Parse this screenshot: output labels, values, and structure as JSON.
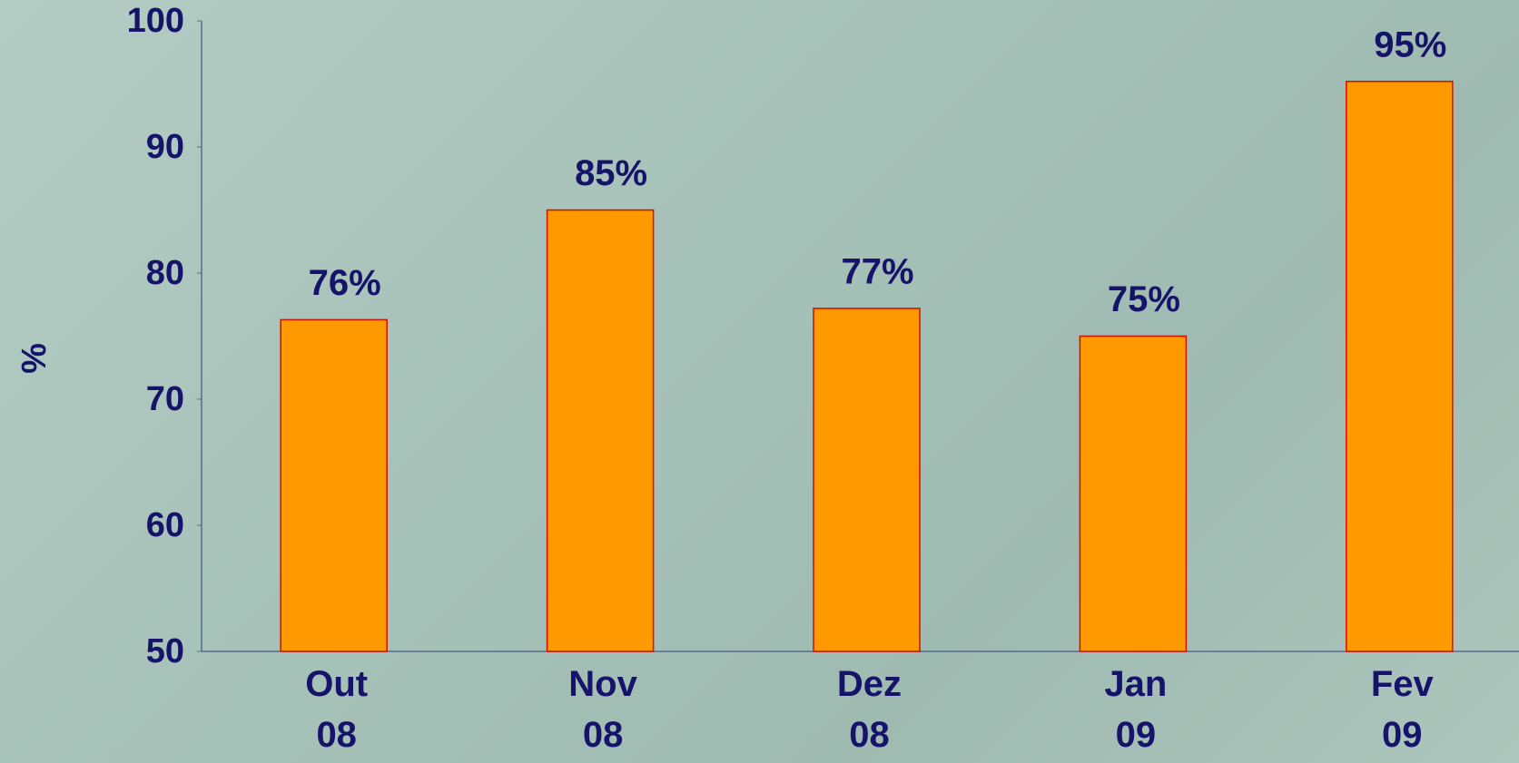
{
  "chart_data": {
    "type": "bar",
    "y_label": "%",
    "categories": [
      "Out 08",
      "Nov 08",
      "Dez 08",
      "Jan 09",
      "Fev 09"
    ],
    "values": [
      76.3,
      85.0,
      77.2,
      75.0,
      95.2
    ],
    "value_labels": [
      "76%",
      "85%",
      "77%",
      "75%",
      "95%"
    ],
    "color": "#ff9900",
    "ylim": [
      50,
      100
    ],
    "yticks": [
      50,
      60,
      70,
      80,
      90,
      100
    ],
    "grid": false
  }
}
